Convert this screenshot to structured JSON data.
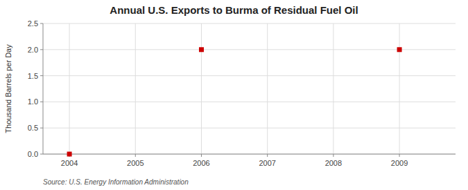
{
  "chart_data": {
    "type": "scatter",
    "title": "Annual U.S. Exports to Burma of Residual Fuel Oil",
    "ylabel": "Thousand Barrels per Day",
    "source": "Source: U.S. Energy Information Administration",
    "x": [
      2004,
      2006,
      2009
    ],
    "values": [
      0.0,
      2.0,
      2.0
    ],
    "color": "#cc0000",
    "marker": "square",
    "xlim": [
      2003.6,
      2009.85
    ],
    "ylim": [
      0.0,
      2.5
    ],
    "xticks": [
      2004,
      2005,
      2006,
      2007,
      2008,
      2009
    ],
    "yticks": [
      {
        "value": 0.0,
        "label": "0.0"
      },
      0.5,
      {
        "value": 1.0,
        "label": "1.0"
      },
      1.5,
      {
        "value": 2.0,
        "label": "2.0"
      },
      2.5
    ],
    "grid": true
  }
}
